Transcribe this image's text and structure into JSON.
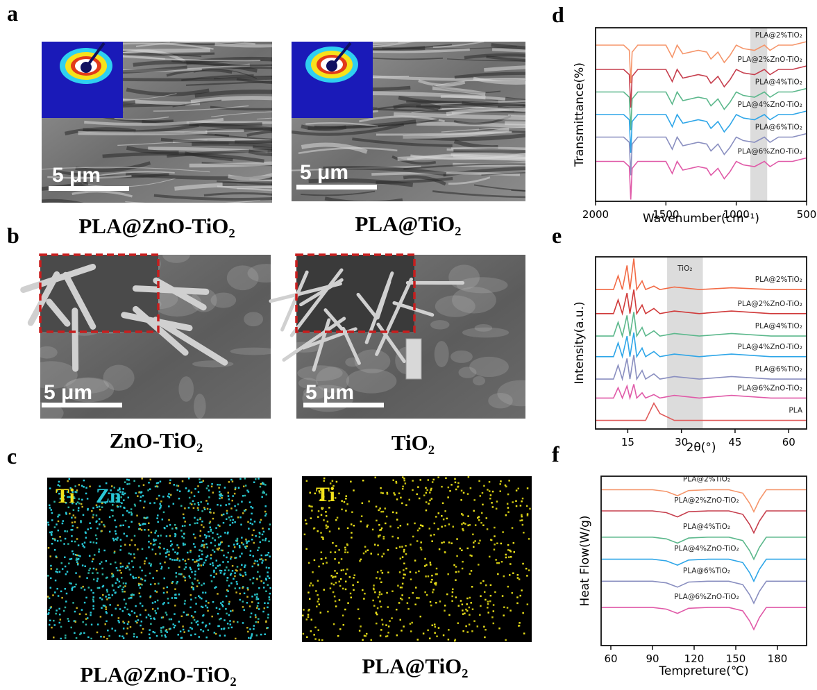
{
  "panels": [
    {
      "label": "a",
      "images": [
        {
          "caption": "PLA@ZnO-TiO₂",
          "scale_bar": "5 μm"
        },
        {
          "caption": "PLA@TiO₂",
          "scale_bar": "5 μm"
        }
      ]
    },
    {
      "label": "b",
      "images": [
        {
          "caption": "ZnO-TiO₂",
          "scale_bar": "5 μm"
        },
        {
          "caption": "TiO₂",
          "scale_bar": "5 μm"
        }
      ]
    },
    {
      "label": "c",
      "images": [
        {
          "caption": "PLA@ZnO-TiO₂",
          "elements": [
            "Ti",
            "Zn"
          ]
        },
        {
          "caption": "PLA@TiO₂",
          "elements": [
            "Ti"
          ]
        }
      ]
    }
  ],
  "chart_data": [
    {
      "type": "line",
      "panel_label": "d",
      "x_label": "Wavenumber(cm⁻¹)",
      "y_label": "Transmittance(%)",
      "xlim": [
        2000,
        500
      ],
      "xticks": [
        2000,
        1500,
        1000,
        500
      ],
      "ylim": [
        0,
        10
      ],
      "shade": [
        900,
        780
      ],
      "x": [
        2000,
        1800,
        1760,
        1750,
        1740,
        1700,
        1500,
        1455,
        1420,
        1380,
        1270,
        1210,
        1180,
        1130,
        1085,
        1045,
        1000,
        950,
        870,
        800,
        760,
        700,
        600,
        500
      ],
      "series": [
        {
          "name": "PLA@2%TiO₂",
          "color": "#f5956a",
          "values": [
            9,
            9,
            8.7,
            6.8,
            8.6,
            9,
            9,
            8.3,
            9,
            8.5,
            8.7,
            8.6,
            8.2,
            8.6,
            8,
            8.4,
            9,
            8.8,
            8.7,
            9,
            8.7,
            9,
            9,
            9.2
          ]
        },
        {
          "name": "PLA@2%ZnO-TiO₂",
          "color": "#c63e4d",
          "values": [
            7.6,
            7.6,
            7.3,
            5.4,
            7.2,
            7.6,
            7.6,
            6.9,
            7.6,
            7.1,
            7.3,
            7.2,
            6.8,
            7.2,
            6.6,
            7,
            7.6,
            7.4,
            7.3,
            7.6,
            7.3,
            7.6,
            7.6,
            7.8
          ]
        },
        {
          "name": "PLA@4%TiO₂",
          "color": "#5cb88c",
          "values": [
            6.3,
            6.3,
            6,
            4.1,
            5.9,
            6.3,
            6.3,
            5.6,
            6.3,
            5.8,
            6,
            5.9,
            5.5,
            5.9,
            5.3,
            5.7,
            6.3,
            6.1,
            6,
            6.3,
            6,
            6.3,
            6.3,
            6.5
          ]
        },
        {
          "name": "PLA@4%ZnO-TiO₂",
          "color": "#2ea6e8",
          "values": [
            5,
            5,
            4.7,
            2.8,
            4.6,
            5,
            5,
            4.3,
            5,
            4.5,
            4.7,
            4.6,
            4.2,
            4.6,
            4,
            4.4,
            5,
            4.8,
            4.7,
            5,
            4.7,
            5,
            5,
            5.2
          ]
        },
        {
          "name": "PLA@6%TiO₂",
          "color": "#8a8fc0",
          "values": [
            3.7,
            3.7,
            3.4,
            1.5,
            3.3,
            3.7,
            3.7,
            3,
            3.7,
            3.2,
            3.4,
            3.3,
            2.9,
            3.3,
            2.7,
            3.1,
            3.7,
            3.5,
            3.4,
            3.7,
            3.4,
            3.7,
            3.7,
            3.9
          ]
        },
        {
          "name": "PLA@6%ZnO-TiO₂",
          "color": "#e05aa8",
          "values": [
            2.3,
            2.3,
            2,
            0.1,
            1.9,
            2.3,
            2.3,
            1.6,
            2.3,
            1.8,
            2,
            1.9,
            1.5,
            1.9,
            1.3,
            1.7,
            2.3,
            2.1,
            2,
            2.3,
            2,
            2.3,
            2.3,
            2.5
          ]
        }
      ]
    },
    {
      "type": "line",
      "panel_label": "e",
      "x_label": "2θ(°)",
      "y_label": "Intensity(a.u.)",
      "xlim": [
        6,
        65
      ],
      "xticks": [
        15,
        30,
        45,
        60
      ],
      "ylim": [
        0,
        10
      ],
      "shade": [
        26,
        36
      ],
      "shade_label": "TiO₂",
      "x": [
        6,
        11,
        12.3,
        13.5,
        14.8,
        15.6,
        16.7,
        17.5,
        19,
        20,
        22.3,
        24,
        28,
        35,
        44,
        55,
        65
      ],
      "series": [
        {
          "name": "PLA@2%TiO₂",
          "color": "#f26a45",
          "values": [
            8.1,
            8.1,
            8.9,
            8.1,
            9.5,
            8.1,
            9.9,
            8.1,
            8.6,
            8.1,
            8.3,
            8.1,
            8.25,
            8.1,
            8.2,
            8.1,
            8.1
          ]
        },
        {
          "name": "PLA@2%ZnO-TiO₂",
          "color": "#d03a3a",
          "values": [
            6.7,
            6.7,
            7.5,
            6.7,
            7.9,
            6.7,
            8.1,
            6.7,
            7.2,
            6.7,
            7,
            6.7,
            6.85,
            6.7,
            6.85,
            6.7,
            6.7
          ]
        },
        {
          "name": "PLA@4%TiO₂",
          "color": "#5cb88c",
          "values": [
            5.4,
            5.4,
            6.2,
            5.4,
            6.6,
            5.4,
            6.8,
            5.4,
            5.9,
            5.4,
            5.7,
            5.4,
            5.55,
            5.4,
            5.55,
            5.4,
            5.4
          ]
        },
        {
          "name": "PLA@4%ZnO-TiO₂",
          "color": "#2ea6e8",
          "values": [
            4.2,
            4.2,
            5,
            4.2,
            5.4,
            4.2,
            5.6,
            4.2,
            4.7,
            4.2,
            4.5,
            4.2,
            4.35,
            4.2,
            4.35,
            4.2,
            4.2
          ]
        },
        {
          "name": "PLA@6%TiO₂",
          "color": "#8a8fc0",
          "values": [
            2.9,
            2.9,
            3.7,
            2.9,
            4.1,
            2.9,
            4.3,
            2.9,
            3.4,
            2.9,
            3.2,
            2.9,
            3.05,
            2.9,
            3.05,
            2.9,
            2.9
          ]
        },
        {
          "name": "PLA@6%ZnO-TiO₂",
          "color": "#e05aa8",
          "values": [
            1.8,
            1.8,
            2.4,
            1.8,
            2.5,
            1.8,
            2.6,
            1.8,
            2.1,
            1.8,
            2,
            1.8,
            1.95,
            1.8,
            1.95,
            1.8,
            1.8
          ]
        },
        {
          "name": "PLA",
          "color": "#e05a5a",
          "values": [
            0.5,
            0.5,
            0.5,
            0.5,
            0.5,
            0.5,
            0.5,
            0.5,
            0.5,
            0.5,
            1.5,
            0.9,
            0.5,
            0.5,
            0.5,
            0.5,
            0.5
          ]
        }
      ]
    },
    {
      "type": "line",
      "panel_label": "f",
      "x_label": "Tempreture(℃)",
      "y_label": "Heat Flow(W/g)",
      "xlim": [
        53,
        201
      ],
      "xticks": [
        60,
        90,
        120,
        150,
        180
      ],
      "ylim": [
        0,
        10
      ],
      "x": [
        53,
        62,
        75,
        90,
        100,
        108,
        116,
        130,
        145,
        155,
        160,
        163,
        167,
        172,
        180,
        201
      ],
      "series": [
        {
          "name": "PLA@2%TiO₂",
          "color": "#f5956a",
          "values": [
            9.2,
            9.2,
            9.2,
            9.2,
            9.1,
            8.85,
            9.15,
            9.2,
            9.2,
            9,
            8.4,
            7.9,
            8.6,
            9.2,
            9.2,
            9.2
          ]
        },
        {
          "name": "PLA@2%ZnO-TiO₂",
          "color": "#c63e4d",
          "values": [
            7.95,
            7.95,
            7.95,
            7.95,
            7.85,
            7.6,
            7.9,
            7.95,
            7.95,
            7.75,
            7.15,
            6.65,
            7.35,
            7.95,
            7.95,
            7.95
          ]
        },
        {
          "name": "PLA@4%TiO₂",
          "color": "#5cb88c",
          "values": [
            6.4,
            6.4,
            6.4,
            6.4,
            6.3,
            6.05,
            6.35,
            6.4,
            6.4,
            6.2,
            5.6,
            5.1,
            5.8,
            6.4,
            6.4,
            6.4
          ]
        },
        {
          "name": "PLA@4%ZnO-TiO₂",
          "color": "#2ea6e8",
          "values": [
            5.1,
            5.1,
            5.1,
            5.1,
            5,
            4.75,
            5.05,
            5.1,
            5.1,
            4.9,
            4.3,
            3.8,
            4.5,
            5.1,
            5.1,
            5.1
          ]
        },
        {
          "name": "PLA@6%TiO₂",
          "color": "#8a8fc0",
          "values": [
            3.8,
            3.8,
            3.8,
            3.8,
            3.7,
            3.45,
            3.75,
            3.8,
            3.8,
            3.6,
            3,
            2.5,
            3.2,
            3.8,
            3.8,
            3.8
          ]
        },
        {
          "name": "PLA@6%ZnO-TiO₂",
          "color": "#e05aa8",
          "values": [
            2.25,
            2.25,
            2.25,
            2.25,
            2.15,
            1.9,
            2.2,
            2.25,
            2.25,
            2.05,
            1.45,
            0.95,
            1.65,
            2.25,
            2.25,
            2.25
          ]
        }
      ]
    }
  ]
}
